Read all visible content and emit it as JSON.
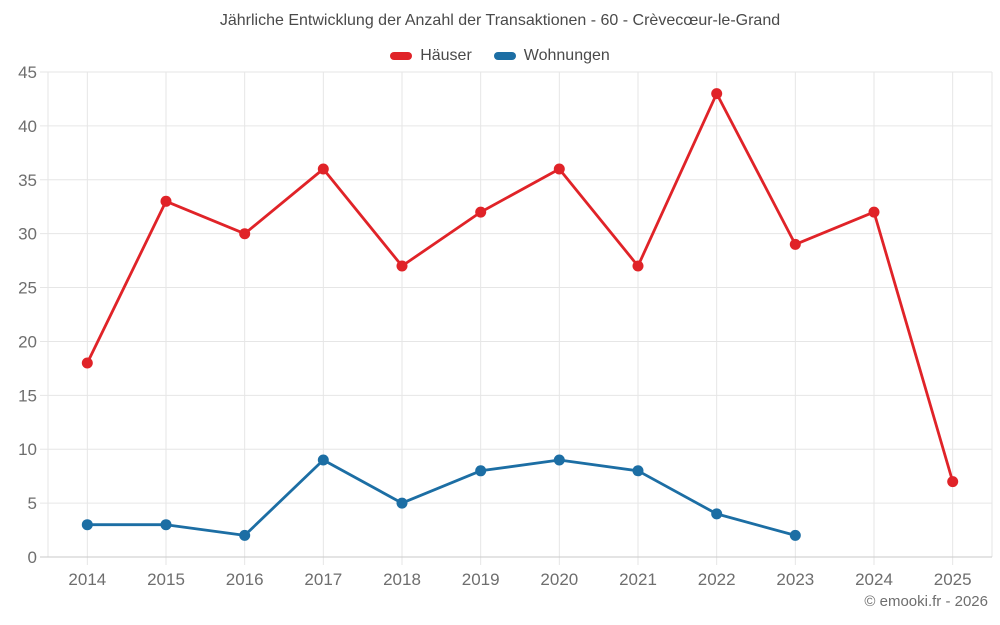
{
  "title": "Jährliche Entwicklung der Anzahl der Transaktionen - 60 - Crèvecœur-le-Grand",
  "footer": {
    "copyright": "© emooki.fr - 2026"
  },
  "colors": {
    "hauser_red": "#e02328",
    "wohnungen_blue": "#1c6ea4",
    "grid": "#e6e6e6",
    "axis_line": "#c9c9c9",
    "axis_label": "#6e6e6e",
    "title_text": "#4a4a4a"
  },
  "chart_data": {
    "type": "line",
    "title": "Jährliche Entwicklung der Anzahl der Transaktionen - 60 - Crèvecœur-le-Grand",
    "categories": [
      "2014",
      "2015",
      "2016",
      "2017",
      "2018",
      "2019",
      "2020",
      "2021",
      "2022",
      "2023",
      "2024",
      "2025"
    ],
    "series": [
      {
        "name": "Häuser",
        "color": "#e02328",
        "values": [
          18,
          33,
          30,
          36,
          27,
          32,
          36,
          27,
          43,
          29,
          32,
          7
        ]
      },
      {
        "name": "Wohnungen",
        "color": "#1c6ea4",
        "values": [
          3,
          3,
          2,
          9,
          5,
          8,
          9,
          8,
          4,
          2,
          null,
          null
        ]
      }
    ],
    "xlabel": "",
    "ylabel": "",
    "ylim": [
      0,
      45
    ],
    "ytick_step": 5,
    "grid": true,
    "legend_position": "top"
  }
}
